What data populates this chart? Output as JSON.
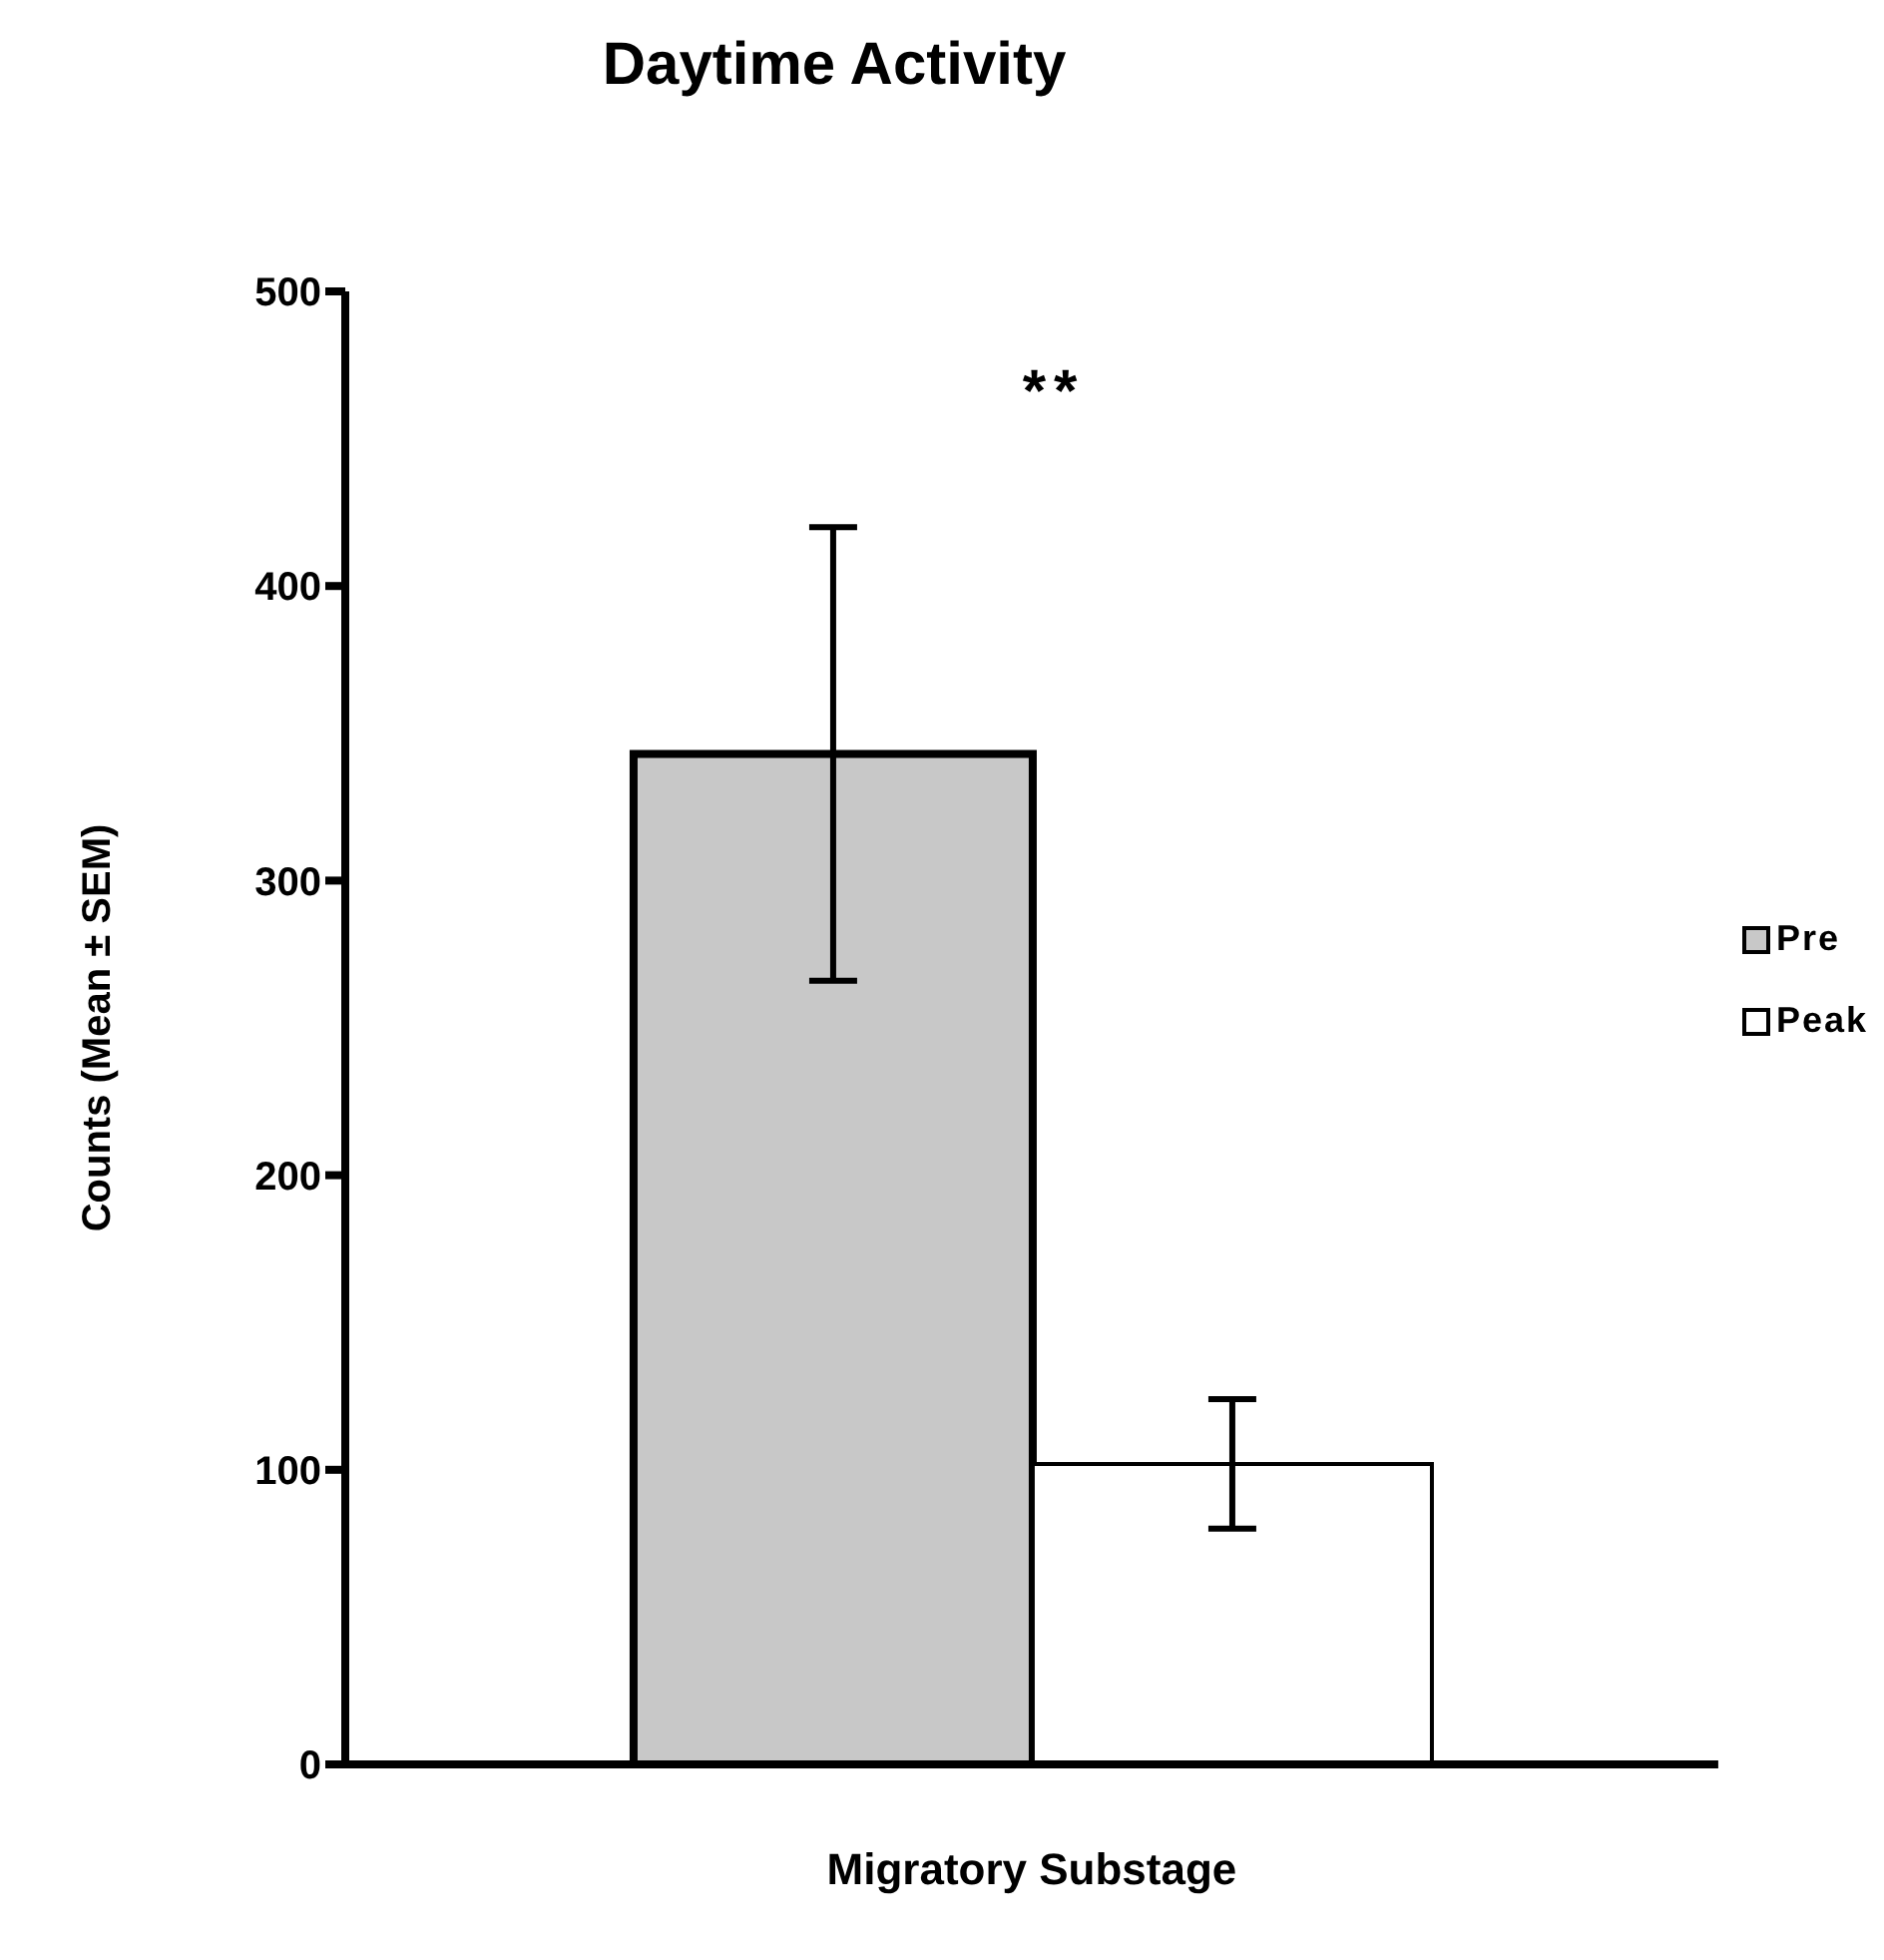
{
  "chart_data": {
    "type": "bar",
    "title": "Daytime Activity",
    "xlabel": "Migratory Substage",
    "ylabel": "Counts (Mean ± SEM)",
    "categories": [
      null
    ],
    "series": [
      {
        "name": "Pre",
        "color": "#c8c8c8",
        "values": [
          343
        ],
        "errors": [
          77
        ]
      },
      {
        "name": "Peak",
        "color": "#ffffff",
        "values": [
          102
        ],
        "errors": [
          22
        ]
      }
    ],
    "ylim": [
      0,
      500
    ],
    "yticks": [
      0,
      100,
      200,
      300,
      400,
      500
    ],
    "grid": false,
    "legend": "right",
    "annotations": [
      "**"
    ]
  }
}
